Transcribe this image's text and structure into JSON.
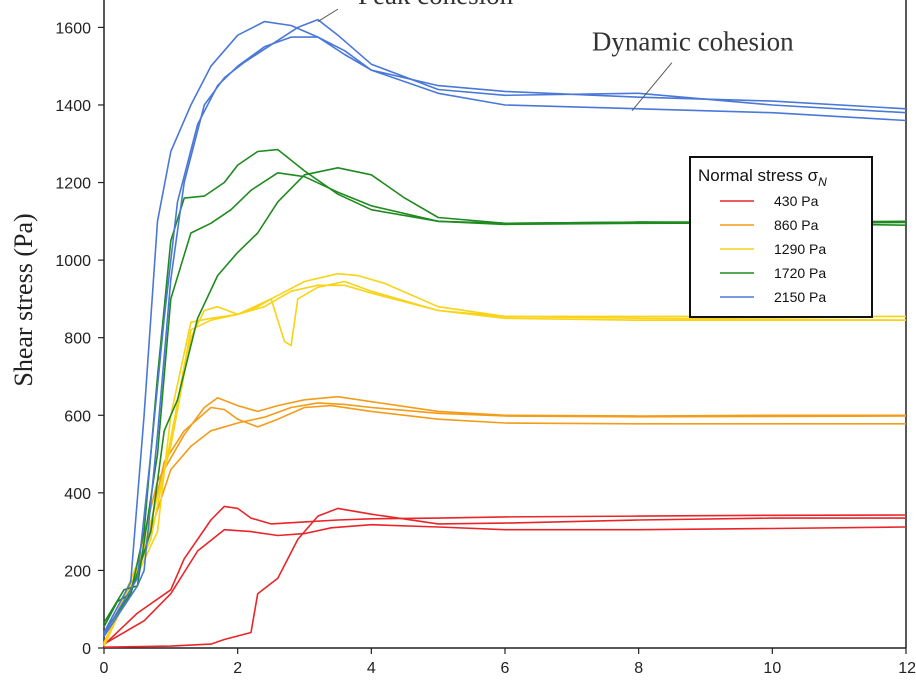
{
  "chart_data": {
    "type": "line",
    "ylabel": "Shear stress (Pa)",
    "xlabel": "",
    "xlim": [
      0,
      12
    ],
    "ylim": [
      0,
      1650
    ],
    "x_ticks": [
      0,
      2,
      4,
      6,
      8,
      10,
      12
    ],
    "y_ticks": [
      0,
      200,
      400,
      600,
      800,
      1000,
      1200,
      1400,
      1600
    ],
    "legend": {
      "title": "Normal stress σ",
      "title_subscript": "N",
      "placement": "right"
    },
    "annotations": [
      {
        "text": "Dynamic cohesion",
        "x": 7.3,
        "y": 1540,
        "pointer_to": [
          7.9,
          1385
        ]
      },
      {
        "text": "Peak cohesion",
        "x": 3.8,
        "y": 1660,
        "pointer_to": [
          3.2,
          1615
        ]
      }
    ],
    "series": [
      {
        "name": "430 Pa",
        "color": "#e8262a",
        "runs": [
          {
            "x": [
              0,
              0.5,
              1.0,
              1.2,
              1.6,
              1.8,
              2.0,
              2.2,
              2.5,
              3.0,
              3.5,
              4.0,
              5.0,
              6.0,
              8.0,
              10.0,
              12.0
            ],
            "y": [
              8,
              90,
              150,
              230,
              330,
              365,
              360,
              335,
              320,
              325,
              330,
              333,
              335,
              338,
              340,
              342,
              343
            ]
          },
          {
            "x": [
              0,
              0.6,
              1.0,
              1.4,
              1.8,
              2.2,
              2.6,
              3.0,
              3.4,
              4.0,
              5.0,
              6.0,
              8.0,
              10.0,
              12.0
            ],
            "y": [
              10,
              70,
              140,
              250,
              305,
              300,
              290,
              295,
              310,
              318,
              312,
              305,
              305,
              308,
              312
            ]
          },
          {
            "x": [
              0,
              1.0,
              1.6,
              1.8,
              2.2,
              2.3,
              2.6,
              2.9,
              3.2,
              3.5,
              4.0,
              5.0,
              6.0,
              8.0,
              10.0,
              12.0
            ],
            "y": [
              2,
              5,
              10,
              22,
              40,
              140,
              180,
              280,
              340,
              360,
              345,
              320,
              322,
              330,
              335,
              335
            ]
          }
        ]
      },
      {
        "name": "860 Pa",
        "color": "#f39c18",
        "runs": [
          {
            "x": [
              0,
              0.4,
              0.8,
              1.2,
              1.5,
              1.7,
              2.0,
              2.3,
              2.6,
              3.0,
              3.5,
              4.0,
              5.0,
              6.0,
              8.0,
              10.0,
              12.0
            ],
            "y": [
              15,
              150,
              430,
              550,
              620,
              645,
              625,
              610,
              625,
              640,
              648,
              635,
              610,
              600,
              598,
              600,
              600
            ]
          },
          {
            "x": [
              0,
              0.5,
              1.0,
              1.3,
              1.6,
              2.0,
              2.4,
              2.8,
              3.2,
              3.6,
              4.0,
              5.0,
              6.0,
              8.0,
              10.0,
              12.0
            ],
            "y": [
              12,
              200,
              460,
              520,
              560,
              580,
              595,
              620,
              632,
              628,
              620,
              605,
              598,
              596,
              597,
              598
            ]
          },
          {
            "x": [
              0,
              0.6,
              0.9,
              1.2,
              1.6,
              1.8,
              2.0,
              2.3,
              2.6,
              3.0,
              3.4,
              4.0,
              5.0,
              6.0,
              8.0,
              10.0,
              12.0
            ],
            "y": [
              10,
              240,
              480,
              560,
              620,
              615,
              590,
              570,
              590,
              620,
              625,
              610,
              590,
              580,
              578,
              578,
              578
            ]
          }
        ]
      },
      {
        "name": "1290 Pa",
        "color": "#f8d316",
        "runs": [
          {
            "x": [
              0,
              0.6,
              1.0,
              1.3,
              1.5,
              1.7,
              2.0,
              2.3,
              2.5,
              2.7,
              2.8,
              2.9,
              3.2,
              3.6,
              4.0,
              5.0,
              6.0,
              8.0,
              10.0,
              12.0
            ],
            "y": [
              10,
              260,
              520,
              800,
              870,
              880,
              860,
              880,
              900,
              790,
              780,
              900,
              930,
              945,
              920,
              870,
              855,
              855,
              855,
              855
            ]
          },
          {
            "x": [
              0,
              0.7,
              1.0,
              1.3,
              1.6,
              2.0,
              2.4,
              2.8,
              3.2,
              3.6,
              4.0,
              5.0,
              6.0,
              8.0,
              10.0,
              12.0
            ],
            "y": [
              8,
              280,
              540,
              820,
              845,
              860,
              880,
              920,
              935,
              935,
              915,
              870,
              850,
              845,
              845,
              845
            ]
          },
          {
            "x": [
              0,
              0.8,
              1.0,
              1.3,
              1.6,
              2.0,
              2.5,
              3.0,
              3.5,
              3.8,
              4.2,
              5.0,
              6.0,
              8.0,
              10.0,
              12.0
            ],
            "y": [
              5,
              300,
              600,
              840,
              850,
              860,
              900,
              945,
              965,
              960,
              940,
              880,
              855,
              850,
              848,
              845
            ]
          }
        ]
      },
      {
        "name": "1720 Pa",
        "color": "#1f8a1f",
        "runs": [
          {
            "x": [
              0,
              0.2,
              0.4,
              0.6,
              0.8,
              1.0,
              1.2,
              1.5,
              1.8,
              2.0,
              2.3,
              2.6,
              3.0,
              3.5,
              4.0,
              5.0,
              6.0,
              8.0,
              10.0,
              12.0
            ],
            "y": [
              55,
              120,
              140,
              300,
              700,
              1050,
              1160,
              1165,
              1200,
              1245,
              1280,
              1285,
              1230,
              1170,
              1130,
              1100,
              1095,
              1098,
              1098,
              1100
            ]
          },
          {
            "x": [
              0,
              0.3,
              0.5,
              0.8,
              1.0,
              1.3,
              1.6,
              1.9,
              2.2,
              2.6,
              3.0,
              3.5,
              4.0,
              5.0,
              6.0,
              8.0,
              10.0,
              12.0
            ],
            "y": [
              65,
              150,
              160,
              500,
              900,
              1070,
              1095,
              1130,
              1180,
              1225,
              1215,
              1175,
              1140,
              1100,
              1092,
              1095,
              1096,
              1097
            ]
          },
          {
            "x": [
              0,
              0.4,
              0.7,
              0.9,
              1.1,
              1.4,
              1.7,
              2.0,
              2.3,
              2.6,
              3.0,
              3.5,
              4.0,
              4.5,
              5.0,
              6.0,
              8.0,
              10.0,
              12.0
            ],
            "y": [
              40,
              140,
              300,
              560,
              640,
              850,
              960,
              1020,
              1070,
              1150,
              1220,
              1238,
              1220,
              1160,
              1110,
              1095,
              1098,
              1095,
              1090
            ]
          }
        ]
      },
      {
        "name": "2150 Pa",
        "color": "#4a78d8",
        "runs": [
          {
            "x": [
              0,
              0.4,
              0.6,
              0.8,
              1.0,
              1.3,
              1.6,
              2.0,
              2.4,
              2.8,
              3.2,
              3.6,
              4.0,
              5.0,
              6.0,
              8.0,
              10.0,
              12.0
            ],
            "y": [
              40,
              170,
              600,
              1100,
              1280,
              1400,
              1500,
              1580,
              1615,
              1605,
              1575,
              1530,
              1490,
              1450,
              1435,
              1420,
              1410,
              1390
            ]
          },
          {
            "x": [
              0,
              0.5,
              0.7,
              0.9,
              1.1,
              1.4,
              1.7,
              2.0,
              2.4,
              2.8,
              3.2,
              3.6,
              4.0,
              5.0,
              6.0,
              8.0,
              10.0,
              12.0
            ],
            "y": [
              35,
              180,
              500,
              850,
              1150,
              1350,
              1450,
              1500,
              1550,
              1575,
              1575,
              1540,
              1490,
              1430,
              1400,
              1390,
              1380,
              1360
            ]
          },
          {
            "x": [
              0,
              0.5,
              0.6,
              0.8,
              1.0,
              1.2,
              1.5,
              1.8,
              2.1,
              2.5,
              2.9,
              3.2,
              3.5,
              4.0,
              5.0,
              6.0,
              8.0,
              10.0,
              12.0
            ],
            "y": [
              30,
              160,
              200,
              550,
              950,
              1200,
              1400,
              1470,
              1510,
              1555,
              1600,
              1620,
              1580,
              1505,
              1440,
              1425,
              1430,
              1400,
              1380
            ]
          }
        ]
      }
    ]
  }
}
